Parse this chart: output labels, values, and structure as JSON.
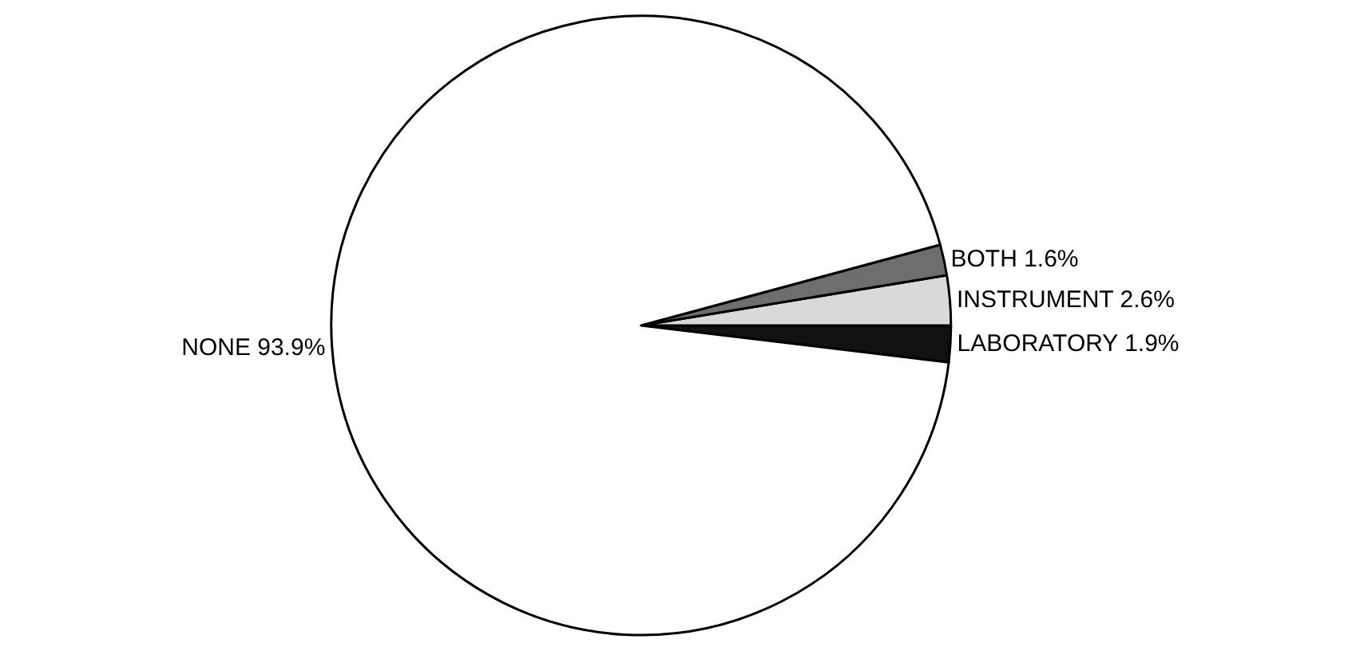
{
  "chart_data": {
    "type": "pie",
    "categories": [
      "LABORATORY",
      "INSTRUMENT",
      "BOTH",
      "NONE"
    ],
    "values": [
      1.9,
      2.6,
      1.6,
      93.9
    ],
    "value_labels": [
      "1.9%",
      "2.6%",
      "1.6%",
      "93.9%"
    ],
    "colors": [
      "#111111",
      "#d9d9d9",
      "#6e6e6e",
      "#ffffff"
    ],
    "legend": false
  }
}
